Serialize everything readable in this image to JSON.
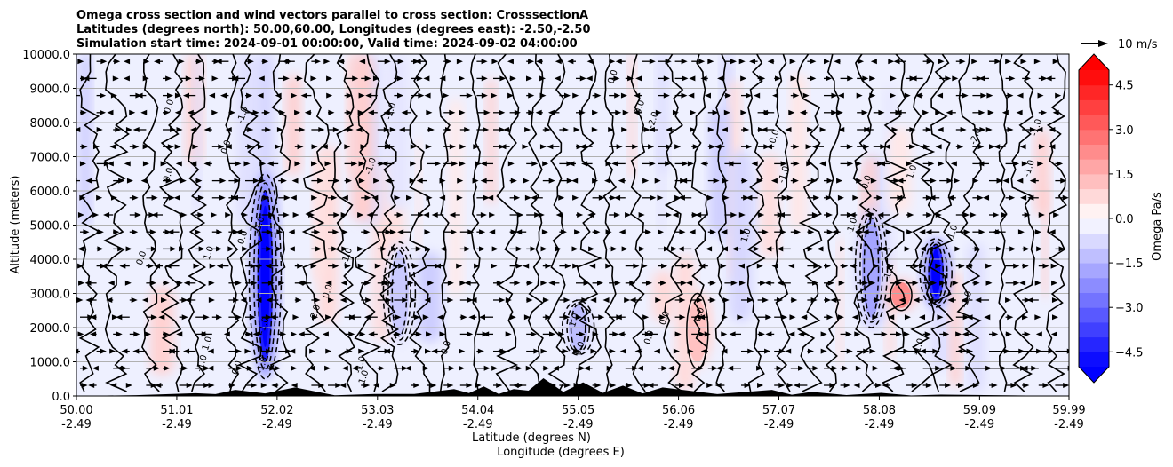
{
  "chart_data": {
    "type": "contour",
    "title_lines": [
      "Omega cross section and wind vectors parallel to cross section: CrosssectionA",
      "Latitudes (degrees north): 50.00,60.00, Longitudes (degrees east): -2.50,-2.50",
      "Simulation start time: 2024-09-01 00:00:00, Valid time: 2024-09-02 04:00:00"
    ],
    "xlabel": "Latitude (degrees N)",
    "xlabel2": "Longitude (degrees E)",
    "ylabel": "Altitude (meters)",
    "xlim": [
      50.0,
      59.99
    ],
    "ylim": [
      0,
      10000
    ],
    "x_ticks": [
      {
        "lat": "50.00",
        "lon": "-2.49",
        "value": 50.0
      },
      {
        "lat": "51.01",
        "lon": "-2.49",
        "value": 51.01
      },
      {
        "lat": "52.02",
        "lon": "-2.49",
        "value": 52.02
      },
      {
        "lat": "53.03",
        "lon": "-2.49",
        "value": 53.03
      },
      {
        "lat": "54.04",
        "lon": "-2.49",
        "value": 54.04
      },
      {
        "lat": "55.05",
        "lon": "-2.49",
        "value": 55.05
      },
      {
        "lat": "56.06",
        "lon": "-2.49",
        "value": 56.06
      },
      {
        "lat": "57.07",
        "lon": "-2.49",
        "value": 57.07
      },
      {
        "lat": "58.08",
        "lon": "-2.49",
        "value": 58.08
      },
      {
        "lat": "59.09",
        "lon": "-2.49",
        "value": 59.09
      },
      {
        "lat": "59.99",
        "lon": "-2.49",
        "value": 59.99
      }
    ],
    "y_ticks": [
      {
        "label": "0.0",
        "value": 0
      },
      {
        "label": "1000.0",
        "value": 1000
      },
      {
        "label": "2000.0",
        "value": 2000
      },
      {
        "label": "3000.0",
        "value": 3000
      },
      {
        "label": "4000.0",
        "value": 4000
      },
      {
        "label": "5000.0",
        "value": 5000
      },
      {
        "label": "6000.0",
        "value": 6000
      },
      {
        "label": "7000.0",
        "value": 7000
      },
      {
        "label": "8000.0",
        "value": 8000
      },
      {
        "label": "9000.0",
        "value": 9000
      },
      {
        "label": "10000.0",
        "value": 10000
      }
    ],
    "grid": "horizontal",
    "colorbar": {
      "label": "Omega Pa/s",
      "vmin": -5.0,
      "vmax": 5.0,
      "extend": "both",
      "ticks": [
        {
          "label": "4.5",
          "value": 4.5
        },
        {
          "label": "3.0",
          "value": 3.0
        },
        {
          "label": "1.5",
          "value": 1.5
        },
        {
          "label": "0.0",
          "value": 0.0
        },
        {
          "label": "−1.5",
          "value": -1.5
        },
        {
          "label": "−3.0",
          "value": -3.0
        },
        {
          "label": "−4.5",
          "value": -4.5
        }
      ],
      "colormap": "bwr",
      "under_color": "#0000ff",
      "over_color": "#ff0000"
    },
    "quiver_key": {
      "label": "10 m/s",
      "speed": 10
    },
    "features": [
      {
        "lat": 51.9,
        "alt_min": 500,
        "alt_max": 6500,
        "omega": -5.5
      },
      {
        "lat": 58.65,
        "alt_min": 2600,
        "alt_max": 4600,
        "omega": -5.2
      },
      {
        "lat": 58.0,
        "alt_min": 2000,
        "alt_max": 5500,
        "omega": -2.2
      },
      {
        "lat": 58.3,
        "alt_min": 2500,
        "alt_max": 3400,
        "omega": 2.8
      },
      {
        "lat": 55.05,
        "alt_min": 1200,
        "alt_max": 2800,
        "omega": -1.6
      },
      {
        "lat": 53.25,
        "alt_min": 1500,
        "alt_max": 4500,
        "omega": -1.3
      },
      {
        "lat": 56.25,
        "alt_min": 800,
        "alt_max": 3000,
        "omega": 1.5
      }
    ],
    "contour_labels": [
      "0.0",
      "-1.0",
      "1.0",
      "-2.0",
      "1.0",
      "-1.0",
      "0.0",
      "0.0",
      "-1.0",
      "-1.0",
      "0.0",
      "0.0"
    ],
    "terrain": [
      {
        "lat": 51.2,
        "height": 80
      },
      {
        "lat": 51.6,
        "height": 180
      },
      {
        "lat": 52.2,
        "height": 250
      },
      {
        "lat": 53.0,
        "height": 60
      },
      {
        "lat": 53.8,
        "height": 200
      },
      {
        "lat": 54.1,
        "height": 280
      },
      {
        "lat": 54.4,
        "height": 200
      },
      {
        "lat": 54.7,
        "height": 520
      },
      {
        "lat": 55.1,
        "height": 400
      },
      {
        "lat": 55.5,
        "height": 300
      },
      {
        "lat": 55.9,
        "height": 250
      },
      {
        "lat": 57.0,
        "height": 180
      },
      {
        "lat": 57.4,
        "height": 120
      },
      {
        "lat": 58.1,
        "height": 90
      },
      {
        "lat": 58.7,
        "height": 40
      }
    ]
  }
}
